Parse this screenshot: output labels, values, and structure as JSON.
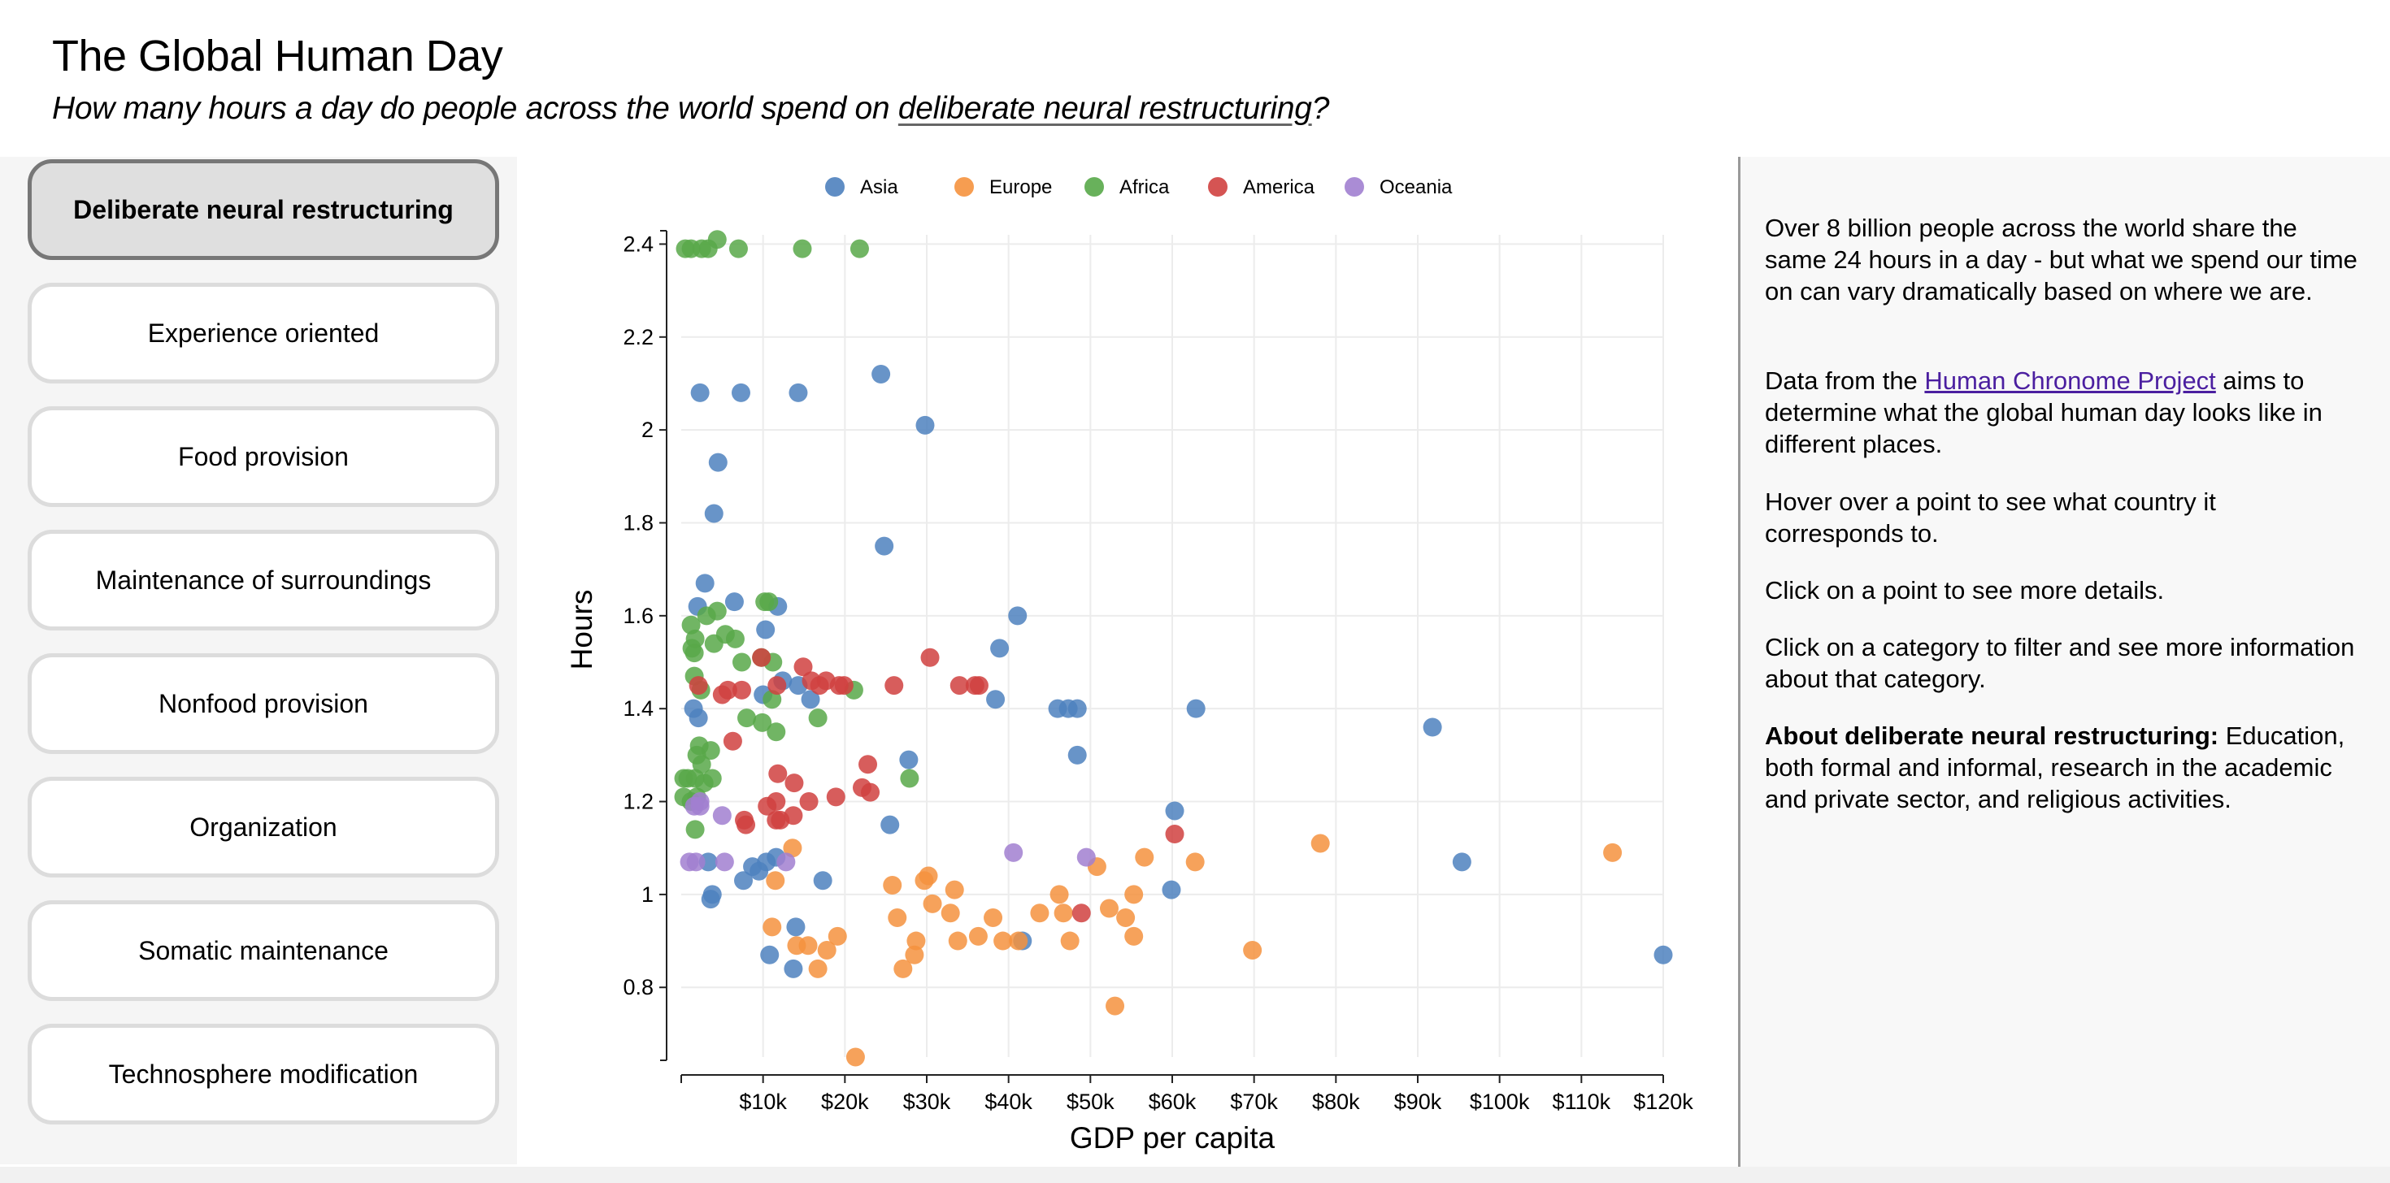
{
  "header": {
    "title": "The Global Human Day",
    "subtitle_prefix": "How many hours a day do people across the world spend on ",
    "subtitle_link": "deliberate neural restructuring",
    "subtitle_suffix": "?"
  },
  "categories": [
    {
      "label": "Deliberate neural restructuring",
      "active": true
    },
    {
      "label": "Experience oriented",
      "active": false
    },
    {
      "label": "Food provision",
      "active": false
    },
    {
      "label": "Maintenance of surroundings",
      "active": false
    },
    {
      "label": "Nonfood provision",
      "active": false
    },
    {
      "label": "Organization",
      "active": false
    },
    {
      "label": "Somatic maintenance",
      "active": false
    },
    {
      "label": "Technosphere modification",
      "active": false
    }
  ],
  "info": {
    "p1": "Over 8 billion people across the world share the same 24 hours in a day - but what we spend our time on can vary dramatically based on where we are.",
    "p2_prefix": "Data from the ",
    "p2_link": "Human Chronome Project",
    "p2_suffix": " aims to determine what the global human day looks like in different places.",
    "p3": "Hover over a point to see what country it corresponds to.",
    "p4": "Click on a point to see more details.",
    "p5": "Click on a category to filter and see more information about that category.",
    "about_label": "About deliberate neural restructuring:",
    "about_text": " Education, both formal and informal, research in the academic and private sector, and religious activities."
  },
  "colors": {
    "Asia": "#4e81be",
    "Europe": "#f5923e",
    "Africa": "#58a849",
    "America": "#d04140",
    "Oceania": "#a17fd0"
  },
  "chart_data": {
    "type": "scatter",
    "title": "",
    "xlabel": "GDP per capita",
    "ylabel": "Hours",
    "xlim": [
      0,
      120000
    ],
    "ylim": [
      0.65,
      2.42
    ],
    "xticks": [
      10000,
      20000,
      30000,
      40000,
      50000,
      60000,
      70000,
      80000,
      90000,
      100000,
      110000,
      120000
    ],
    "xtick_labels": [
      "$10k",
      "$20k",
      "$30k",
      "$40k",
      "$50k",
      "$60k",
      "$70k",
      "$80k",
      "$90k",
      "$100k",
      "$110k",
      "$120k"
    ],
    "yticks": [
      0.8,
      1,
      1.2,
      1.4,
      1.6,
      1.8,
      2,
      2.2,
      2.4
    ],
    "ytick_labels": [
      "0.8",
      "1",
      "1.2",
      "1.4",
      "1.6",
      "1.8",
      "2",
      "2.2",
      "2.4"
    ],
    "legend": [
      "Asia",
      "Europe",
      "Africa",
      "America",
      "Oceania"
    ],
    "legend_position": "top",
    "grid": true,
    "series": [
      {
        "name": "Asia",
        "points": [
          [
            2300,
            2.08
          ],
          [
            7300,
            2.08
          ],
          [
            14300,
            2.08
          ],
          [
            24400,
            2.12
          ],
          [
            29800,
            2.01
          ],
          [
            4500,
            1.93
          ],
          [
            4000,
            1.82
          ],
          [
            24800,
            1.75
          ],
          [
            2900,
            1.67
          ],
          [
            6500,
            1.63
          ],
          [
            2000,
            1.62
          ],
          [
            11800,
            1.62
          ],
          [
            10300,
            1.57
          ],
          [
            41100,
            1.6
          ],
          [
            38900,
            1.53
          ],
          [
            1500,
            1.4
          ],
          [
            10000,
            1.43
          ],
          [
            12400,
            1.46
          ],
          [
            14300,
            1.45
          ],
          [
            15800,
            1.42
          ],
          [
            38400,
            1.42
          ],
          [
            46000,
            1.4
          ],
          [
            47300,
            1.4
          ],
          [
            48400,
            1.4
          ],
          [
            62900,
            1.4
          ],
          [
            91800,
            1.36
          ],
          [
            48400,
            1.3
          ],
          [
            27800,
            1.29
          ],
          [
            25500,
            1.15
          ],
          [
            2100,
            1.38
          ],
          [
            60300,
            1.18
          ],
          [
            10400,
            1.07
          ],
          [
            11600,
            1.08
          ],
          [
            8700,
            1.06
          ],
          [
            9500,
            1.05
          ],
          [
            7600,
            1.03
          ],
          [
            17300,
            1.03
          ],
          [
            3300,
            1.07
          ],
          [
            3600,
            0.99
          ],
          [
            3800,
            1.0
          ],
          [
            59900,
            1.01
          ],
          [
            95400,
            1.07
          ],
          [
            14000,
            0.93
          ],
          [
            10800,
            0.87
          ],
          [
            13700,
            0.84
          ],
          [
            41700,
            0.9
          ],
          [
            120000,
            0.87
          ]
        ]
      },
      {
        "name": "Europe",
        "points": [
          [
            13600,
            1.1
          ],
          [
            11500,
            1.03
          ],
          [
            25800,
            1.02
          ],
          [
            29700,
            1.03
          ],
          [
            30200,
            1.04
          ],
          [
            33400,
            1.01
          ],
          [
            56600,
            1.08
          ],
          [
            62800,
            1.07
          ],
          [
            78100,
            1.11
          ],
          [
            113800,
            1.09
          ],
          [
            50800,
            1.06
          ],
          [
            46200,
            1.0
          ],
          [
            55300,
            1.0
          ],
          [
            26400,
            0.95
          ],
          [
            30700,
            0.98
          ],
          [
            32900,
            0.96
          ],
          [
            38100,
            0.95
          ],
          [
            43800,
            0.96
          ],
          [
            46700,
            0.96
          ],
          [
            52300,
            0.97
          ],
          [
            54300,
            0.95
          ],
          [
            11100,
            0.93
          ],
          [
            19100,
            0.91
          ],
          [
            28700,
            0.9
          ],
          [
            33800,
            0.9
          ],
          [
            36300,
            0.91
          ],
          [
            39300,
            0.9
          ],
          [
            41200,
            0.9
          ],
          [
            47500,
            0.9
          ],
          [
            55300,
            0.91
          ],
          [
            14100,
            0.89
          ],
          [
            15500,
            0.89
          ],
          [
            17800,
            0.88
          ],
          [
            28500,
            0.87
          ],
          [
            27100,
            0.84
          ],
          [
            16700,
            0.84
          ],
          [
            69800,
            0.88
          ],
          [
            53000,
            0.76
          ],
          [
            21300,
            0.65
          ]
        ]
      },
      {
        "name": "Africa",
        "points": [
          [
            500,
            2.39
          ],
          [
            1200,
            2.39
          ],
          [
            2500,
            2.39
          ],
          [
            3300,
            2.39
          ],
          [
            4400,
            2.41
          ],
          [
            7000,
            2.39
          ],
          [
            14800,
            2.39
          ],
          [
            21800,
            2.39
          ],
          [
            3100,
            1.6
          ],
          [
            4400,
            1.61
          ],
          [
            1200,
            1.58
          ],
          [
            1700,
            1.55
          ],
          [
            5400,
            1.56
          ],
          [
            6600,
            1.55
          ],
          [
            1300,
            1.53
          ],
          [
            1600,
            1.52
          ],
          [
            4000,
            1.54
          ],
          [
            10200,
            1.63
          ],
          [
            10700,
            1.63
          ],
          [
            7400,
            1.5
          ],
          [
            9800,
            1.51
          ],
          [
            11200,
            1.5
          ],
          [
            1600,
            1.47
          ],
          [
            2400,
            1.44
          ],
          [
            21100,
            1.44
          ],
          [
            11100,
            1.42
          ],
          [
            8000,
            1.38
          ],
          [
            9900,
            1.37
          ],
          [
            11600,
            1.35
          ],
          [
            16700,
            1.38
          ],
          [
            2200,
            1.32
          ],
          [
            1900,
            1.3
          ],
          [
            3600,
            1.31
          ],
          [
            2500,
            1.28
          ],
          [
            300,
            1.25
          ],
          [
            800,
            1.25
          ],
          [
            1700,
            1.25
          ],
          [
            2800,
            1.24
          ],
          [
            3800,
            1.25
          ],
          [
            27900,
            1.25
          ],
          [
            300,
            1.21
          ],
          [
            1200,
            1.2
          ],
          [
            1900,
            1.21
          ],
          [
            1700,
            1.14
          ]
        ]
      },
      {
        "name": "America",
        "points": [
          [
            2100,
            1.45
          ],
          [
            5000,
            1.43
          ],
          [
            5700,
            1.44
          ],
          [
            7400,
            1.44
          ],
          [
            9800,
            1.51
          ],
          [
            14900,
            1.49
          ],
          [
            11700,
            1.45
          ],
          [
            15900,
            1.46
          ],
          [
            16900,
            1.45
          ],
          [
            17700,
            1.46
          ],
          [
            19300,
            1.45
          ],
          [
            19900,
            1.45
          ],
          [
            26000,
            1.45
          ],
          [
            30400,
            1.51
          ],
          [
            34000,
            1.45
          ],
          [
            35900,
            1.45
          ],
          [
            36400,
            1.45
          ],
          [
            6300,
            1.33
          ],
          [
            11800,
            1.26
          ],
          [
            13800,
            1.24
          ],
          [
            22800,
            1.28
          ],
          [
            22100,
            1.23
          ],
          [
            23100,
            1.22
          ],
          [
            11600,
            1.2
          ],
          [
            15600,
            1.2
          ],
          [
            18900,
            1.21
          ],
          [
            10500,
            1.19
          ],
          [
            11600,
            1.16
          ],
          [
            12100,
            1.16
          ],
          [
            13700,
            1.17
          ],
          [
            7700,
            1.16
          ],
          [
            7900,
            1.15
          ],
          [
            60300,
            1.13
          ],
          [
            48900,
            0.96
          ]
        ]
      },
      {
        "name": "Oceania",
        "points": [
          [
            1600,
            1.19
          ],
          [
            2300,
            1.19
          ],
          [
            5000,
            1.17
          ],
          [
            1000,
            1.07
          ],
          [
            1800,
            1.07
          ],
          [
            5300,
            1.07
          ],
          [
            12800,
            1.07
          ],
          [
            40600,
            1.09
          ],
          [
            49500,
            1.08
          ],
          [
            2300,
            1.2
          ]
        ]
      }
    ]
  }
}
